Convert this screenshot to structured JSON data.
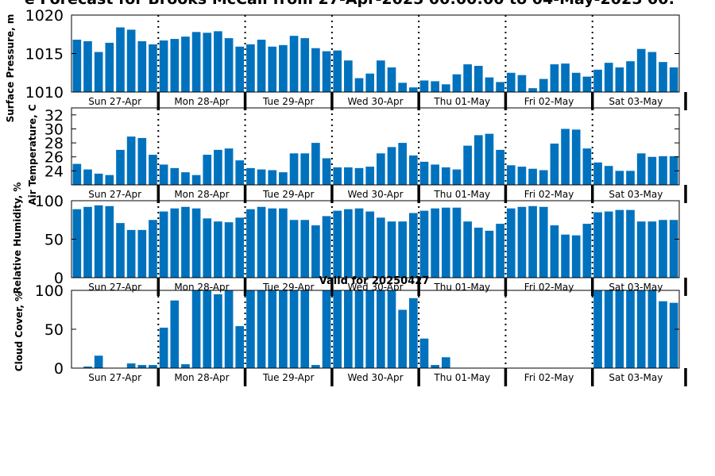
{
  "title": "e Forecast for Brooks McCall from 27-Apr-2025 00:00:00 to 04-May-2025 00:",
  "subtitle": "Valid for 20250427",
  "days": [
    "Sun 27-Apr",
    "Mon 28-Apr",
    "Tue 29-Apr",
    "Wed 30-Apr",
    "Thu 01-May",
    "Fri 02-May",
    "Sat 03-May"
  ],
  "colors": {
    "bar": "#0072BD",
    "axis": "#000000"
  },
  "chart_data": [
    {
      "type": "bar",
      "ylabel": "Surface Pressure, m",
      "ylim": [
        1010,
        1020
      ],
      "yticks": [
        "1010",
        "1015",
        "1020"
      ],
      "values": [
        1016.8,
        1016.6,
        1015.2,
        1016.4,
        1018.4,
        1018.1,
        1016.6,
        1016.2,
        1016.7,
        1016.9,
        1017.2,
        1017.8,
        1017.7,
        1017.9,
        1017.0,
        1015.9,
        1016.2,
        1016.8,
        1015.9,
        1016.1,
        1017.3,
        1017.0,
        1015.7,
        1015.3,
        1015.4,
        1014.1,
        1011.8,
        1012.4,
        1014.1,
        1013.2,
        1011.2,
        1010.6,
        1011.5,
        1011.4,
        1011.0,
        1012.3,
        1013.6,
        1013.4,
        1011.9,
        1011.3,
        1012.5,
        1012.2,
        1010.5,
        1011.7,
        1013.6,
        1013.7,
        1012.5,
        1012.0,
        1012.9,
        1013.8,
        1013.2,
        1014.0,
        1015.6,
        1015.2,
        1013.9,
        1013.2
      ]
    },
    {
      "type": "bar",
      "ylabel": "Air Temperature, C",
      "ylim": [
        22,
        33
      ],
      "yticks": [
        "24",
        "26",
        "28",
        "30",
        "32"
      ],
      "values": [
        25.0,
        24.2,
        23.6,
        23.4,
        27.0,
        28.9,
        28.7,
        26.3,
        24.9,
        24.4,
        23.8,
        23.4,
        26.3,
        27.0,
        27.2,
        25.5,
        24.4,
        24.2,
        24.1,
        23.8,
        26.5,
        26.5,
        28.0,
        25.8,
        24.5,
        24.5,
        24.4,
        24.6,
        26.5,
        27.4,
        28.0,
        26.2,
        25.3,
        24.9,
        24.5,
        24.2,
        27.6,
        29.1,
        29.3,
        27.0,
        24.8,
        24.6,
        24.3,
        24.1,
        27.9,
        30.0,
        29.9,
        27.2,
        25.2,
        24.7,
        24.0,
        24.0,
        26.5,
        26.0,
        26.1,
        26.1
      ]
    },
    {
      "type": "bar",
      "ylabel": "Relative Humidity, %",
      "ylim": [
        0,
        100
      ],
      "yticks": [
        "0",
        "50",
        "100"
      ],
      "values": [
        89,
        92,
        94,
        93,
        71,
        62,
        62,
        75,
        86,
        90,
        92,
        90,
        77,
        73,
        72,
        78,
        89,
        92,
        90,
        90,
        75,
        75,
        68,
        80,
        87,
        89,
        90,
        86,
        78,
        73,
        73,
        84,
        87,
        90,
        91,
        91,
        73,
        65,
        61,
        70,
        90,
        92,
        93,
        92,
        68,
        56,
        55,
        70,
        85,
        86,
        88,
        88,
        73,
        73,
        75,
        75
      ]
    },
    {
      "type": "bar",
      "ylabel": "Cloud Cover, %",
      "ylim": [
        0,
        100
      ],
      "yticks": [
        "0",
        "50",
        "100"
      ],
      "values": [
        0,
        2,
        16,
        0,
        0,
        6,
        4,
        4,
        52,
        87,
        5,
        100,
        100,
        95,
        100,
        54,
        100,
        100,
        100,
        100,
        100,
        100,
        4,
        100,
        100,
        100,
        100,
        100,
        100,
        100,
        75,
        90,
        38,
        4,
        14,
        0,
        0,
        0,
        0,
        0,
        0,
        0,
        0,
        0,
        0,
        0,
        0,
        0,
        100,
        100,
        100,
        100,
        100,
        100,
        86,
        84
      ]
    }
  ]
}
